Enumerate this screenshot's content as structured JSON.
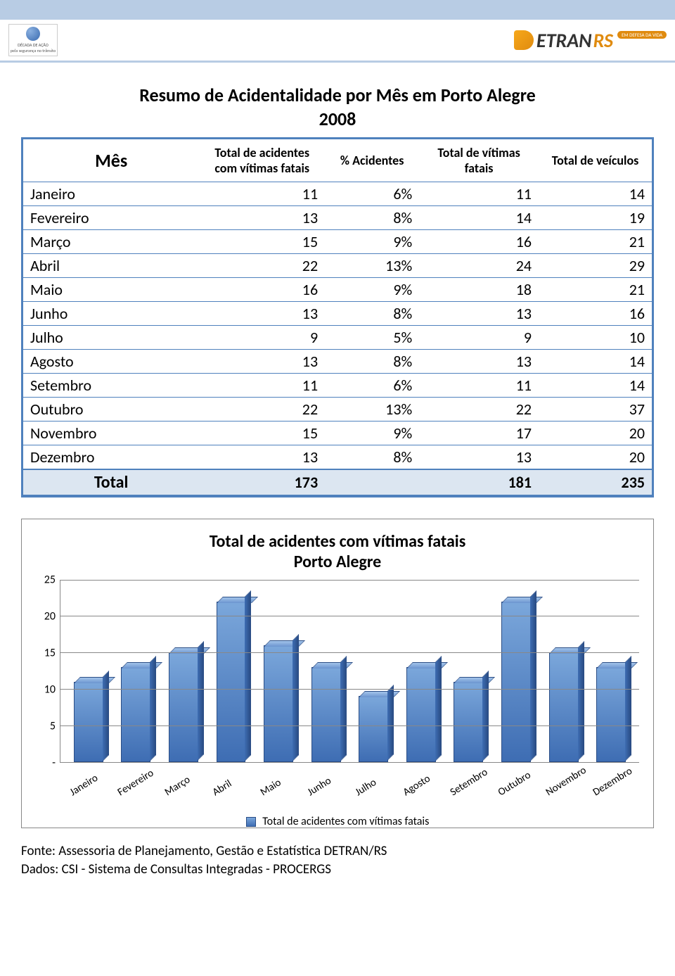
{
  "header": {
    "left_logo_line1": "DÉCADA DE AÇÃO",
    "left_logo_line2": "pela segurança no trânsito",
    "right_logo_text": "ETRAN",
    "right_logo_suffix": "RS",
    "right_logo_tag": "EM DEFESA DA VIDA"
  },
  "title": "Resumo de Acidentalidade por Mês em Porto Alegre",
  "year": "2008",
  "table": {
    "columns": [
      "Mês",
      "Total de acidentes com vítimas fatais",
      "% Acidentes",
      "Total de vítimas fatais",
      "Total de veículos"
    ],
    "rows": [
      {
        "mes": "Janeiro",
        "acidentes": "11",
        "pct": "6%",
        "vitimas": "11",
        "veiculos": "14"
      },
      {
        "mes": "Fevereiro",
        "acidentes": "13",
        "pct": "8%",
        "vitimas": "14",
        "veiculos": "19"
      },
      {
        "mes": "Março",
        "acidentes": "15",
        "pct": "9%",
        "vitimas": "16",
        "veiculos": "21"
      },
      {
        "mes": "Abril",
        "acidentes": "22",
        "pct": "13%",
        "vitimas": "24",
        "veiculos": "29"
      },
      {
        "mes": "Maio",
        "acidentes": "16",
        "pct": "9%",
        "vitimas": "18",
        "veiculos": "21"
      },
      {
        "mes": "Junho",
        "acidentes": "13",
        "pct": "8%",
        "vitimas": "13",
        "veiculos": "16"
      },
      {
        "mes": "Julho",
        "acidentes": "9",
        "pct": "5%",
        "vitimas": "9",
        "veiculos": "10"
      },
      {
        "mes": "Agosto",
        "acidentes": "13",
        "pct": "8%",
        "vitimas": "13",
        "veiculos": "14"
      },
      {
        "mes": "Setembro",
        "acidentes": "11",
        "pct": "6%",
        "vitimas": "11",
        "veiculos": "14"
      },
      {
        "mes": "Outubro",
        "acidentes": "22",
        "pct": "13%",
        "vitimas": "22",
        "veiculos": "37"
      },
      {
        "mes": "Novembro",
        "acidentes": "15",
        "pct": "9%",
        "vitimas": "17",
        "veiculos": "20"
      },
      {
        "mes": "Dezembro",
        "acidentes": "13",
        "pct": "8%",
        "vitimas": "13",
        "veiculos": "20"
      }
    ],
    "total": {
      "label": "Total",
      "acidentes": "173",
      "pct": "",
      "vitimas": "181",
      "veiculos": "235"
    }
  },
  "chart": {
    "type": "bar",
    "title_line1": "Total de acidentes com vítimas fatais",
    "title_line2": "Porto Alegre",
    "categories": [
      "Janeiro",
      "Fevereiro",
      "Março",
      "Abril",
      "Maio",
      "Junho",
      "Julho",
      "Agosto",
      "Setembro",
      "Outubro",
      "Novembro",
      "Dezembro"
    ],
    "values": [
      11,
      13,
      15,
      22,
      16,
      13,
      9,
      13,
      11,
      22,
      15,
      13
    ],
    "ylim_max": 25,
    "ytick_labels": [
      "25",
      "20",
      "15",
      "10",
      "5",
      "-"
    ],
    "ytick_positions": [
      25,
      20,
      15,
      10,
      5,
      0
    ],
    "bar_color_top": "#7ba7db",
    "bar_color_bottom": "#3e6db3",
    "bar_border": "#2a4d85",
    "grid_color": "#888888",
    "background_color": "#ffffff",
    "title_fontsize": 24,
    "label_fontsize": 16,
    "legend_text": "Total de acidentes com vítimas fatais",
    "bar_width": 0.62
  },
  "footer": {
    "line1": "Fonte: Assessoria de Planejamento, Gestão e Estatística DETRAN/RS",
    "line2": "Dados: CSI - Sistema de Consultas Integradas - PROCERGS"
  }
}
